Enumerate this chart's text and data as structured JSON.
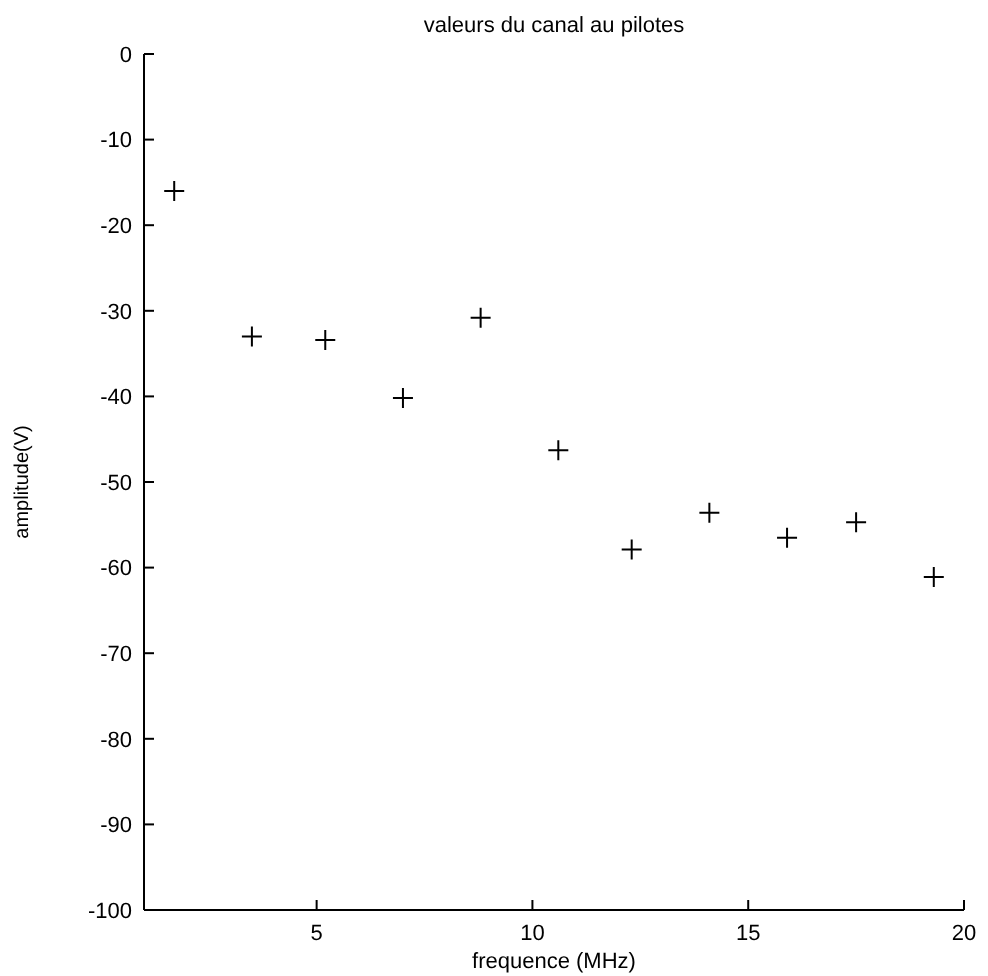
{
  "chart_data": {
    "type": "scatter",
    "title": "valeurs du canal au pilotes",
    "xlabel": "frequence (MHz)",
    "ylabel": "amplitude(V)",
    "x": [
      1.7,
      3.5,
      5.2,
      7.0,
      8.8,
      10.6,
      12.3,
      14.1,
      15.9,
      17.5,
      19.3
    ],
    "series": [
      {
        "color": "#000000",
        "values": [
          -16,
          -33,
          -33.4,
          -40.2,
          -30.8,
          -46.3,
          -57.9,
          -53.6,
          -56.5,
          -54.7,
          -61.1
        ]
      }
    ],
    "xlim": [
      1,
      20
    ],
    "xticks": [
      5,
      10,
      15,
      20
    ],
    "ylim": [
      -100,
      0
    ],
    "yticks": [
      -100,
      -90,
      -80,
      -70,
      -60,
      -50,
      -40,
      -30,
      -20,
      -10,
      0
    ],
    "marker": "cross",
    "grid": false
  }
}
